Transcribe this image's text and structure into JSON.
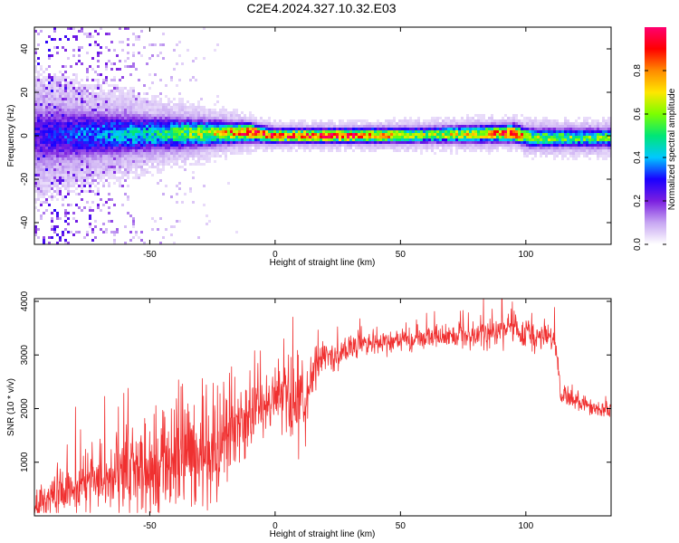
{
  "page": {
    "title": "C2E4.2024.327.10.32.E03"
  },
  "chart_data": [
    {
      "type": "heatmap",
      "title": "C2E4.2024.327.10.32.E03",
      "xlabel": "Height of straight line (km)",
      "ylabel": "Frequency (Hz)",
      "xlim": [
        -96,
        134
      ],
      "ylim": [
        -50,
        50
      ],
      "xticks": [
        -50,
        0,
        50,
        100
      ],
      "yticks": [
        -40,
        -20,
        0,
        20,
        40
      ],
      "colorbar": {
        "label": "Normalized spectral amplitude",
        "range": [
          0,
          1
        ],
        "ticks": [
          "0.0",
          "0.2",
          "0.4",
          "0.6",
          "0.8"
        ],
        "colormap": [
          "#ffffff",
          "#c7a6f2",
          "#7b1fe0",
          "#1a00ff",
          "#00c8ff",
          "#00e676",
          "#7cff00",
          "#ffe600",
          "#ff8a00",
          "#ff0000",
          "#ff0070"
        ]
      },
      "ridge": {
        "x": [
          -96,
          -75,
          -50,
          -25,
          -10,
          0,
          10,
          30,
          60,
          85,
          95,
          102,
          120,
          134
        ],
        "center_hz": [
          0,
          0.5,
          0.8,
          1.2,
          1.5,
          0,
          0,
          0,
          0.3,
          0.8,
          1.2,
          -1,
          -1,
          -1
        ],
        "halfwidth_hz": [
          9,
          7,
          5,
          3.5,
          2.5,
          2,
          2,
          2,
          2.2,
          2.4,
          2.4,
          2.6,
          2.6,
          2.6
        ],
        "peak_amplitude": [
          0.25,
          0.35,
          0.45,
          0.65,
          0.9,
          0.85,
          0.85,
          0.9,
          0.6,
          0.75,
          0.9,
          0.6,
          0.55,
          0.55
        ]
      },
      "noise_level": {
        "x": [
          -96,
          -75,
          -50,
          -20,
          0,
          134
        ],
        "spread": [
          1,
          0.85,
          0.45,
          0.15,
          0.05,
          0.02
        ]
      }
    },
    {
      "type": "line",
      "xlabel": "Height of straight line (km)",
      "ylabel": "SNR (10 * v/v)",
      "xlim": [
        -96,
        134
      ],
      "ylim": [
        0,
        4050
      ],
      "xticks": [
        -50,
        0,
        50,
        100
      ],
      "yticks": [
        1000,
        2000,
        3000,
        4000
      ],
      "color": "#f03030",
      "series": [
        {
          "x": [
            -96,
            -90,
            -80,
            -70,
            -60,
            -50,
            -40,
            -30,
            -20,
            -10,
            0,
            5,
            8,
            10,
            12,
            15,
            20,
            25,
            30,
            40,
            50,
            60,
            70,
            80,
            90,
            95,
            100,
            105,
            110,
            112,
            114,
            120,
            125,
            130,
            134
          ],
          "values": [
            250,
            330,
            500,
            650,
            800,
            950,
            1080,
            1200,
            1450,
            1850,
            2250,
            2400,
            1900,
            2600,
            2000,
            2800,
            2950,
            3050,
            3150,
            3250,
            3300,
            3320,
            3350,
            3380,
            3450,
            3500,
            3400,
            3350,
            3300,
            3200,
            2250,
            2150,
            2050,
            2000,
            1950
          ],
          "noise_amplitude": [
            350,
            400,
            500,
            650,
            750,
            850,
            900,
            1000,
            900,
            700,
            500,
            700,
            900,
            900,
            700,
            400,
            250,
            250,
            220,
            200,
            200,
            200,
            200,
            200,
            230,
            260,
            250,
            230,
            220,
            220,
            180,
            150,
            150,
            150,
            150
          ]
        }
      ]
    }
  ]
}
